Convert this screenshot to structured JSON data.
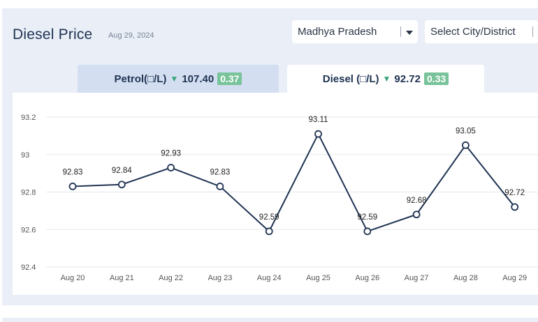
{
  "header": {
    "title": "Diesel Price",
    "date": "Aug 29, 2024"
  },
  "filters": {
    "state": "Madhya Pradesh",
    "city_placeholder": "Select City/District"
  },
  "tabs": [
    {
      "label": "Petrol(□/L)",
      "price": "107.40",
      "change": "0.37",
      "active": false
    },
    {
      "label": "Diesel (□/L)",
      "price": "92.72",
      "change": "0.33",
      "active": true
    }
  ],
  "colors": {
    "line": "#1f3352",
    "badge": "#79c39a",
    "down_arrow": "#3aa57a",
    "grid": "#e4e7ec"
  },
  "chart_data": {
    "type": "line",
    "categories": [
      "Aug 20",
      "Aug 21",
      "Aug 22",
      "Aug 23",
      "Aug 24",
      "Aug 25",
      "Aug 26",
      "Aug 27",
      "Aug 28",
      "Aug 29"
    ],
    "values": [
      92.83,
      92.84,
      92.93,
      92.83,
      92.59,
      93.11,
      92.59,
      92.68,
      93.05,
      92.72
    ],
    "data_labels": [
      "92.83",
      "92.84",
      "92.93",
      "92.83",
      "92.59",
      "93.11",
      "92.59",
      "92.68",
      "93.05",
      "92.72"
    ],
    "y_ticks": [
      "93.2",
      "93",
      "92.8",
      "92.6",
      "92.4"
    ],
    "ylim": [
      92.4,
      93.2
    ],
    "grid": true
  }
}
